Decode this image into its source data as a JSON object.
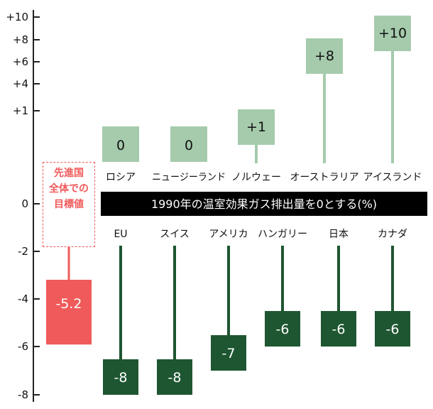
{
  "chart_data": {
    "type": "bar",
    "title": "1990年の温室効果ガス排出量を0とする(%)",
    "ylim": [
      -8,
      10
    ],
    "y_ticks": [
      {
        "value": 10,
        "label": "+10"
      },
      {
        "value": 8,
        "label": "+8"
      },
      {
        "value": 6,
        "label": "+6"
      },
      {
        "value": 4,
        "label": "+4"
      },
      {
        "value": 1,
        "label": "+1"
      },
      {
        "value": 0,
        "label": "0"
      },
      {
        "value": -2,
        "label": "-2"
      },
      {
        "value": -4,
        "label": "-4"
      },
      {
        "value": -6,
        "label": "-6"
      },
      {
        "value": -8,
        "label": "-8"
      }
    ],
    "positive_series": {
      "categories": [
        "ロシア",
        "ニュージーランド",
        "ノルウェー",
        "オーストラリア",
        "アイスランド"
      ],
      "values": [
        0,
        0,
        1,
        8,
        10
      ],
      "labels": [
        "0",
        "0",
        "+1",
        "+8",
        "+10"
      ]
    },
    "negative_series": {
      "categories": [
        "EU",
        "スイス",
        "アメリカ",
        "ハンガリー",
        "日本",
        "カナダ"
      ],
      "values": [
        -8,
        -8,
        -7,
        -6,
        -6,
        -6
      ],
      "labels": [
        "-8",
        "-8",
        "-7",
        "-6",
        "-6",
        "-6"
      ]
    },
    "target": {
      "lines": [
        "先進国",
        "全体での",
        "目標値"
      ],
      "value": -5.2,
      "label": "-5.2"
    },
    "colors": {
      "positive": "#a5cbac",
      "negative": "#1e5631",
      "target": "#f05a5a",
      "band": "#000000"
    }
  }
}
